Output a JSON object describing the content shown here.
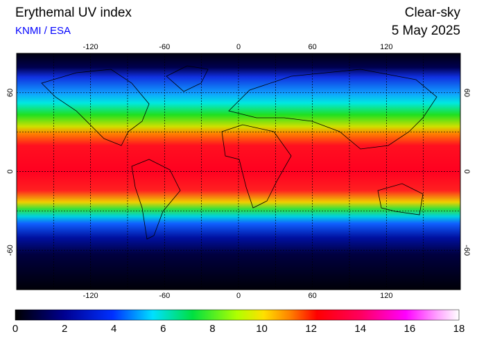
{
  "header": {
    "title": "Erythemal UV index",
    "source": "KNMI / ESA",
    "mode": "Clear-sky",
    "date": "5 May 2025"
  },
  "map": {
    "lon_ticks": [
      -120,
      -60,
      0,
      60,
      120
    ],
    "lat_ticks": [
      60,
      0,
      -60
    ]
  },
  "colorbar": {
    "ticks": [
      0,
      2,
      4,
      6,
      8,
      10,
      12,
      14,
      16,
      18
    ]
  }
}
